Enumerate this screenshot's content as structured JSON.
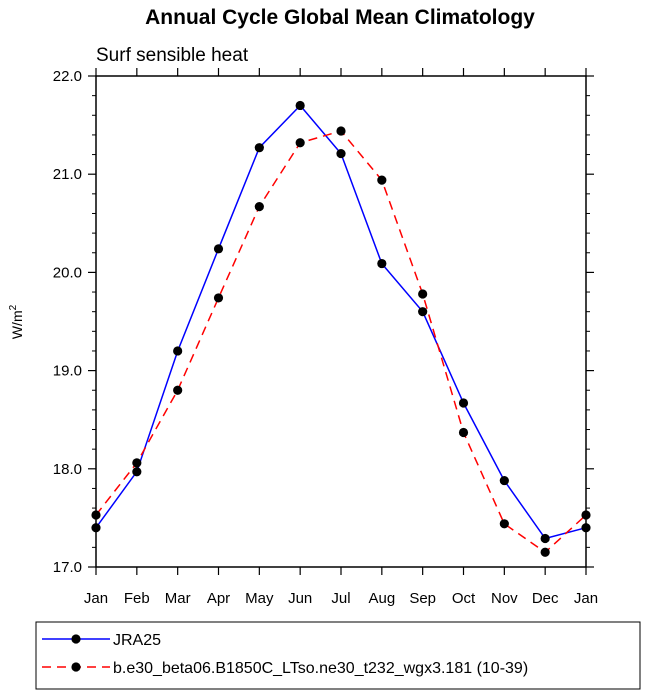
{
  "chart_data": {
    "type": "line",
    "title": "Annual Cycle Global Mean Climatology",
    "subtitle": "Surf sensible heat",
    "xlabel": "",
    "ylabel": "W/m",
    "ylabel_superscript": "2",
    "ylim": [
      17.0,
      22.0
    ],
    "yticks": [
      "17.0",
      "18.0",
      "19.0",
      "20.0",
      "21.0",
      "22.0"
    ],
    "ytick_values": [
      17.0,
      18.0,
      19.0,
      20.0,
      21.0,
      22.0
    ],
    "categories": [
      "Jan",
      "Feb",
      "Mar",
      "Apr",
      "May",
      "Jun",
      "Jul",
      "Aug",
      "Sep",
      "Oct",
      "Nov",
      "Dec",
      "Jan"
    ],
    "series": [
      {
        "name": "JRA25",
        "color": "#0000ff",
        "dash": "solid",
        "values": [
          17.4,
          17.97,
          19.2,
          20.24,
          21.27,
          21.7,
          21.21,
          20.09,
          19.6,
          18.67,
          17.88,
          17.29,
          17.4
        ]
      },
      {
        "name": "b.e30_beta06.B1850C_LTso.ne30_t232_wgx3.181 (10-39)",
        "color": "#ff0000",
        "dash": "dashed",
        "values": [
          17.53,
          18.06,
          18.8,
          19.74,
          20.67,
          21.32,
          21.44,
          20.94,
          19.78,
          18.37,
          17.44,
          17.15,
          17.53
        ]
      }
    ],
    "grid": false,
    "legend_position": "bottom"
  }
}
